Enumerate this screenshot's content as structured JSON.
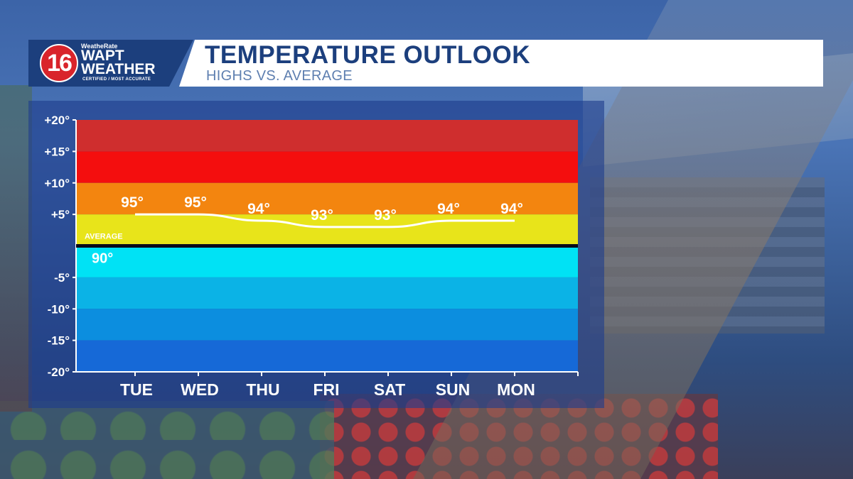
{
  "header": {
    "logo_number": "16",
    "logo_top": "WeatheRate",
    "logo_wapt": "WAPT",
    "logo_weather": "WEATHER",
    "logo_cert": "CERTIFIED / MOST ACCURATE",
    "title": "TEMPERATURE OUTLOOK",
    "subtitle": "HIGHS VS. AVERAGE"
  },
  "colors": {
    "brand_blue": "#1c3f7d",
    "logo_red": "#d9242b",
    "bands": [
      "#cf2e2e",
      "#f40e0e",
      "#f3850f",
      "#e8e41a",
      "#00e2f5",
      "#0bb3e6",
      "#0c8edf",
      "#1669d7"
    ]
  },
  "chart_data": {
    "type": "line",
    "title": "TEMPERATURE OUTLOOK",
    "subtitle": "HIGHS VS. AVERAGE",
    "categories": [
      "TUE",
      "WED",
      "THU",
      "FRI",
      "SAT",
      "SUN",
      "MON"
    ],
    "highs": [
      95,
      95,
      94,
      93,
      93,
      94,
      94
    ],
    "labels": [
      "95°",
      "95°",
      "94°",
      "93°",
      "93°",
      "94°",
      "94°"
    ],
    "average": 90,
    "average_text": "AVERAGE",
    "average_value_label": "90°",
    "ylim": [
      -20,
      20
    ],
    "yticks": [
      "+20°",
      "+15°",
      "+10°",
      "+5°",
      "-5°",
      "-10°",
      "-15°",
      "-20°"
    ],
    "ytick_values": [
      20,
      15,
      10,
      5,
      -5,
      -10,
      -15,
      -20
    ],
    "bands": [
      {
        "from": 15,
        "to": 20
      },
      {
        "from": 10,
        "to": 15
      },
      {
        "from": 5,
        "to": 10
      },
      {
        "from": 0,
        "to": 5
      },
      {
        "from": -5,
        "to": 0
      },
      {
        "from": -10,
        "to": -5
      },
      {
        "from": -15,
        "to": -10
      },
      {
        "from": -20,
        "to": -15
      }
    ],
    "grid": false,
    "legend": "none"
  }
}
